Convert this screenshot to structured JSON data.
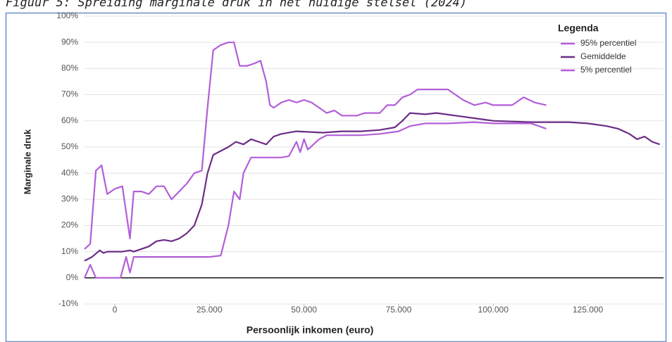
{
  "chart_data": {
    "type": "line",
    "title": "Figuur 5: Spreiding marginale druk in het huidige stelsel (2024)",
    "x_label": "Persoonlijk inkomen (euro)",
    "y_label": "Marginale druk",
    "legend_title": "Legenda",
    "legend": "top-right",
    "grid": true,
    "xlim": [
      -8000,
      145000
    ],
    "ylim": [
      -10,
      100
    ],
    "xticks": [
      0,
      {
        "value": 25000,
        "label": "25.000"
      },
      {
        "value": 50000,
        "label": "50.000"
      },
      {
        "value": 75000,
        "label": "75.000"
      },
      {
        "value": 100000,
        "label": "100.000"
      },
      {
        "value": 125000,
        "label": "125.000"
      }
    ],
    "yticks": [
      {
        "value": -10,
        "label": "-10%"
      },
      {
        "value": 0,
        "label": "0%"
      },
      {
        "value": 10,
        "label": "10%"
      },
      {
        "value": 20,
        "label": "20%"
      },
      {
        "value": 30,
        "label": "30%"
      },
      {
        "value": 40,
        "label": "40%"
      },
      {
        "value": 50,
        "label": "50%"
      },
      {
        "value": 60,
        "label": "60%"
      },
      {
        "value": 70,
        "label": "70%"
      },
      {
        "value": 80,
        "label": "80%"
      },
      {
        "value": 90,
        "label": "90%"
      },
      {
        "value": 100,
        "label": "100%"
      }
    ],
    "series": [
      {
        "name": "95% percentiel",
        "color": "#b25fd8",
        "x": [
          -8000,
          -6500,
          -5000,
          -3500,
          -2000,
          0,
          2000,
          4000,
          5000,
          7000,
          9000,
          11000,
          13000,
          15000,
          17000,
          19000,
          21000,
          23000,
          24500,
          26000,
          28000,
          30000,
          31500,
          33000,
          35000,
          37000,
          38500,
          40000,
          41000,
          42000,
          44000,
          46000,
          48000,
          50000,
          52000,
          54000,
          56000,
          58000,
          60000,
          64000,
          66000,
          70000,
          72000,
          74000,
          76000,
          78000,
          80000,
          85000,
          88000,
          90000,
          92000,
          95000,
          98000,
          100000,
          105000,
          108000,
          111000,
          114000
        ],
        "values": [
          11,
          13,
          41,
          43,
          32,
          34,
          35,
          15,
          33,
          33,
          32,
          35,
          35,
          30,
          33,
          36,
          40,
          41,
          65,
          87,
          89,
          90,
          90,
          81,
          81,
          82,
          83,
          75,
          66,
          65,
          67,
          68,
          67,
          68,
          67,
          65,
          63,
          64,
          62,
          62,
          63,
          63,
          66,
          66,
          69,
          70,
          72,
          72,
          72,
          70,
          68,
          66,
          67,
          66,
          66,
          69,
          67,
          66
        ]
      },
      {
        "name": "Gemiddelde",
        "color": "#6b2d86",
        "x": [
          -8000,
          -6000,
          -4000,
          -3000,
          -2000,
          0,
          2000,
          4000,
          5000,
          7000,
          9000,
          11000,
          13000,
          15000,
          17000,
          19000,
          21000,
          23000,
          24500,
          26000,
          28000,
          30000,
          32000,
          34000,
          36000,
          38000,
          40000,
          42000,
          44000,
          48000,
          55000,
          60000,
          65000,
          70000,
          74000,
          76000,
          78000,
          82000,
          85000,
          90000,
          95000,
          100000,
          110000,
          115000,
          120000,
          125000,
          130000,
          133000,
          136000,
          138000,
          140000,
          142000,
          144000
        ],
        "values": [
          6.5,
          8,
          10.5,
          9.5,
          10,
          10,
          10,
          10.5,
          10,
          11,
          12,
          14,
          14.5,
          14,
          15,
          17,
          20,
          28,
          40,
          47,
          48.5,
          50,
          52,
          51,
          53,
          52,
          51,
          54,
          55,
          56,
          55.5,
          56,
          56,
          56.5,
          57.5,
          60,
          63,
          62.5,
          63,
          62,
          61,
          60,
          59.5,
          59.5,
          59.5,
          59,
          58,
          57,
          55,
          53,
          54,
          52,
          51
        ]
      },
      {
        "name": "5% percentiel",
        "color": "#b25fd8",
        "x": [
          -8000,
          -6500,
          -5000,
          -2000,
          0,
          1500,
          3000,
          4000,
          5000,
          7000,
          10000,
          20000,
          25000,
          28000,
          30000,
          31500,
          33000,
          34000,
          36000,
          38000,
          40000,
          44000,
          46000,
          48000,
          49000,
          50000,
          51000,
          54000,
          56000,
          60000,
          65000,
          70000,
          75000,
          78000,
          82000,
          88000,
          95000,
          100000,
          105000,
          110000,
          114000
        ],
        "values": [
          0,
          5,
          0,
          0,
          0,
          0,
          8,
          2,
          8,
          8,
          8,
          8,
          8,
          8.5,
          20,
          33,
          30,
          40,
          46,
          46,
          46,
          46,
          46.5,
          52,
          48,
          53,
          49,
          53,
          54.5,
          54.5,
          54.5,
          55,
          56,
          58,
          59,
          59,
          59.5,
          59,
          59,
          59,
          57
        ]
      }
    ]
  }
}
